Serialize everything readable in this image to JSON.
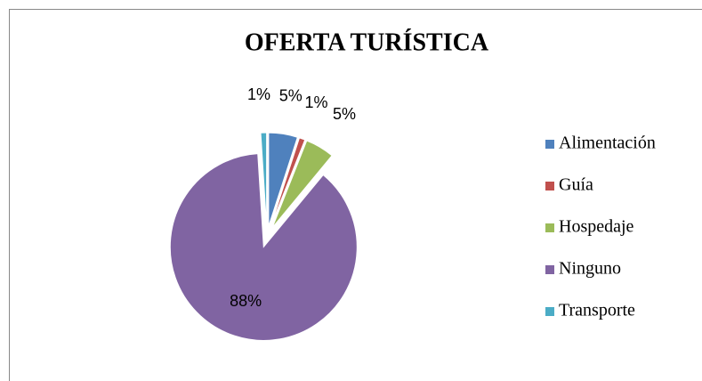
{
  "chart_data": {
    "type": "pie",
    "title": "OFERTA TURÍSTICA",
    "categories": [
      "Alimentación",
      "Guía",
      "Hospedaje",
      "Ninguno",
      "Transporte"
    ],
    "values": [
      5,
      1,
      5,
      88,
      1
    ],
    "value_labels": [
      "5%",
      "1%",
      "5%",
      "88%",
      "1%"
    ],
    "colors": [
      "#4f81bd",
      "#c0504d",
      "#9bbb59",
      "#8064a2",
      "#4bacc6"
    ],
    "legend": "right"
  }
}
